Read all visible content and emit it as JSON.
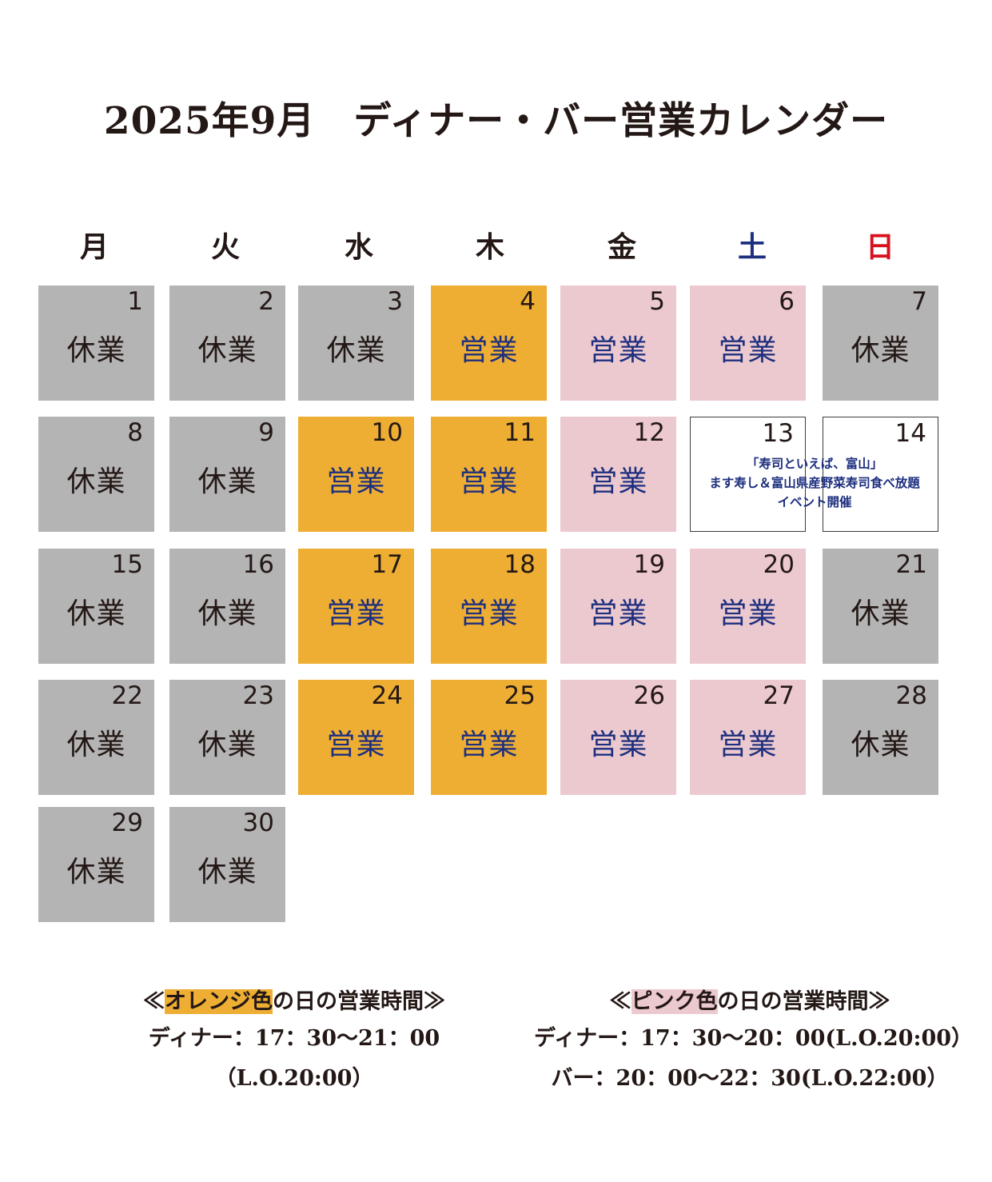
{
  "title": "2025年9月　ディナー・バー営業カレンダー",
  "weekdays": [
    "月",
    "火",
    "水",
    "木",
    "金",
    "土",
    "日"
  ],
  "status_labels": {
    "closed": "休業",
    "open": "営業"
  },
  "days": [
    {
      "day": "1",
      "type": "closed",
      "label": "休業"
    },
    {
      "day": "2",
      "type": "closed",
      "label": "休業"
    },
    {
      "day": "3",
      "type": "closed",
      "label": "休業"
    },
    {
      "day": "4",
      "type": "orange",
      "label": "営業"
    },
    {
      "day": "5",
      "type": "pink",
      "label": "営業"
    },
    {
      "day": "6",
      "type": "pink",
      "label": "営業"
    },
    {
      "day": "7",
      "type": "closed",
      "label": "休業"
    },
    {
      "day": "8",
      "type": "closed",
      "label": "休業"
    },
    {
      "day": "9",
      "type": "closed",
      "label": "休業"
    },
    {
      "day": "10",
      "type": "orange",
      "label": "営業"
    },
    {
      "day": "11",
      "type": "orange",
      "label": "営業"
    },
    {
      "day": "12",
      "type": "pink",
      "label": "営業"
    },
    {
      "day": "13",
      "type": "event",
      "label": ""
    },
    {
      "day": "14",
      "type": "event",
      "label": ""
    },
    {
      "day": "15",
      "type": "closed",
      "label": "休業"
    },
    {
      "day": "16",
      "type": "closed",
      "label": "休業"
    },
    {
      "day": "17",
      "type": "orange",
      "label": "営業"
    },
    {
      "day": "18",
      "type": "orange",
      "label": "営業"
    },
    {
      "day": "19",
      "type": "pink",
      "label": "営業"
    },
    {
      "day": "20",
      "type": "pink",
      "label": "営業"
    },
    {
      "day": "21",
      "type": "closed",
      "label": "休業"
    },
    {
      "day": "22",
      "type": "closed",
      "label": "休業"
    },
    {
      "day": "23",
      "type": "closed",
      "label": "休業"
    },
    {
      "day": "24",
      "type": "orange",
      "label": "営業"
    },
    {
      "day": "25",
      "type": "orange",
      "label": "営業"
    },
    {
      "day": "26",
      "type": "pink",
      "label": "営業"
    },
    {
      "day": "27",
      "type": "pink",
      "label": "営業"
    },
    {
      "day": "28",
      "type": "closed",
      "label": "休業"
    },
    {
      "day": "29",
      "type": "closed",
      "label": "休業"
    },
    {
      "day": "30",
      "type": "closed",
      "label": "休業"
    }
  ],
  "event": {
    "lines": [
      "「寿司といえば、富山」",
      "ます寿し＆富山県産野菜寿司食べ放題",
      "イベント開催"
    ]
  },
  "legend_orange": {
    "open_bracket": "≪",
    "highlight": "オレンジ色",
    "rest": "の日の営業時間≫",
    "lines": [
      "ディナー：17：30～21：00（L.O.20:00）"
    ]
  },
  "legend_pink": {
    "open_bracket": "≪",
    "highlight": "ピンク色",
    "rest": "の日の営業時間≫",
    "lines": [
      "ディナー：17：30～20：00(L.O.20:00）",
      "バー：20：00～22：30(L.O.22:00）"
    ]
  },
  "colors": {
    "closed": "#b4b4b5",
    "orange": "#eeae33",
    "pink": "#ecc9cf",
    "open_text": "#1d2f7e",
    "saturday": "#1d2f7e",
    "sunday": "#d7121f"
  }
}
